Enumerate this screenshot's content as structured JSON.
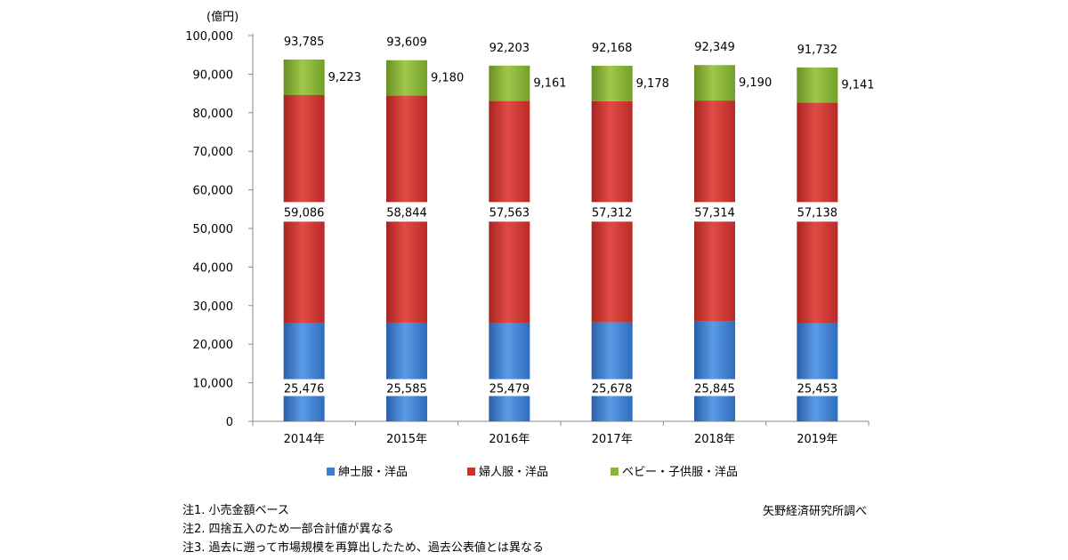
{
  "chart_data": {
    "type": "bar",
    "stacked": true,
    "unit": "(億円)",
    "categories": [
      "2014年",
      "2015年",
      "2016年",
      "2017年",
      "2018年",
      "2019年"
    ],
    "series": [
      {
        "name": "紳士服・洋品",
        "color": "#3a7fd0",
        "values": [
          25476,
          25585,
          25479,
          25678,
          25845,
          25453
        ]
      },
      {
        "name": "婦人服・洋品",
        "color": "#d0302c",
        "values": [
          59086,
          58844,
          57563,
          57312,
          57314,
          57138
        ]
      },
      {
        "name": "ベビー・子供服・洋品",
        "color": "#8ab338",
        "values": [
          9223,
          9180,
          9161,
          9178,
          9190,
          9141
        ]
      }
    ],
    "totals": [
      93785,
      93609,
      92203,
      92168,
      92349,
      91732
    ],
    "labels": {
      "totals": [
        "93,785",
        "93,609",
        "92,203",
        "92,168",
        "92,349",
        "91,732"
      ],
      "mens": [
        "25,476",
        "25,585",
        "25,479",
        "25,678",
        "25,845",
        "25,453"
      ],
      "womens": [
        "59,086",
        "58,844",
        "57,563",
        "57,312",
        "57,314",
        "57,138"
      ],
      "kids": [
        "9,223",
        "9,180",
        "9,161",
        "9,178",
        "9,190",
        "9,141"
      ]
    },
    "yticks": [
      0,
      10000,
      20000,
      30000,
      40000,
      50000,
      60000,
      70000,
      80000,
      90000,
      100000
    ],
    "ytick_labels": [
      "0",
      "10,000",
      "20,000",
      "30,000",
      "40,000",
      "50,000",
      "60,000",
      "70,000",
      "80,000",
      "90,000",
      "100,000"
    ],
    "ylim": [
      0,
      100000
    ],
    "legend_position": "bottom"
  },
  "notes": [
    "注1. 小売金額ベース",
    "注2. 四捨五入のため一部合計値が異なる",
    "注3. 過去に遡って市場規模を再算出したため、過去公表値とは異なる"
  ],
  "source": "矢野経済研究所調べ"
}
